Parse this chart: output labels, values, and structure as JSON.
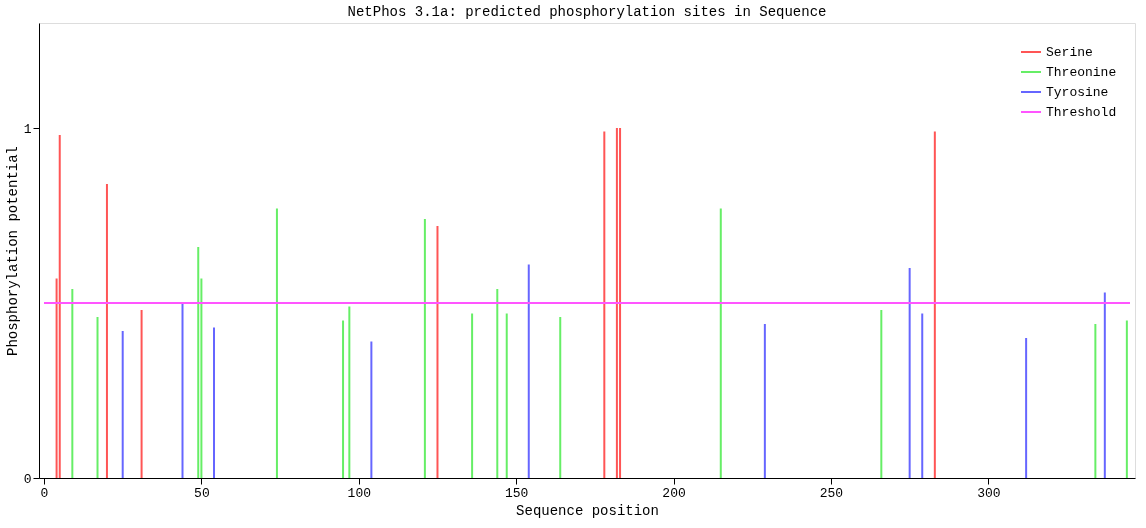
{
  "chart_data": {
    "type": "bar",
    "title": "NetPhos 3.1a: predicted phosphorylation sites in Sequence",
    "xlabel": "Sequence position",
    "ylabel": "Phosphorylation potential",
    "xlim": [
      0,
      345
    ],
    "ylim": [
      0,
      1.3
    ],
    "xticks": [
      0,
      50,
      100,
      150,
      200,
      250,
      300
    ],
    "yticks": [
      0,
      1
    ],
    "grid": false,
    "legend": "top right",
    "series": [
      {
        "name": "Serine",
        "color": "#ff5555",
        "x": [
          4,
          5,
          20,
          31,
          125,
          178,
          182,
          183,
          283
        ],
        "values": [
          0.57,
          0.98,
          0.84,
          0.48,
          0.72,
          0.99,
          1.0,
          1.0,
          0.99
        ]
      },
      {
        "name": "Threonine",
        "color": "#66ee66",
        "x": [
          9,
          17,
          49,
          50,
          74,
          95,
          97,
          121,
          136,
          144,
          147,
          164,
          215,
          266,
          334,
          344
        ],
        "values": [
          0.54,
          0.46,
          0.66,
          0.57,
          0.77,
          0.45,
          0.49,
          0.74,
          0.47,
          0.54,
          0.47,
          0.46,
          0.77,
          0.48,
          0.44,
          0.45
        ]
      },
      {
        "name": "Tyrosine",
        "color": "#6666ff",
        "x": [
          25,
          44,
          54,
          104,
          154,
          229,
          275,
          279,
          312,
          337
        ],
        "values": [
          0.42,
          0.5,
          0.43,
          0.39,
          0.61,
          0.44,
          0.6,
          0.47,
          0.4,
          0.53
        ]
      },
      {
        "name": "Threshold",
        "type": "line",
        "color": "#ff55ff",
        "x": [
          0,
          345
        ],
        "values": [
          0.5,
          0.5
        ]
      }
    ]
  }
}
